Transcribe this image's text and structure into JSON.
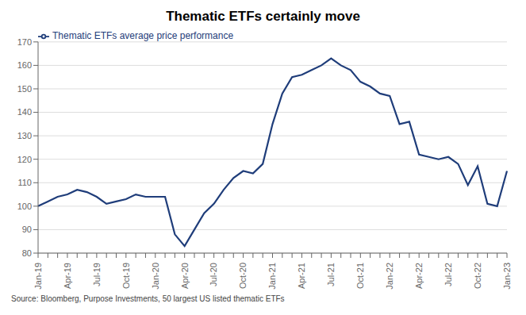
{
  "chart_data": {
    "type": "line",
    "title": "Thematic ETFs certainly move",
    "annotations": [
      "Source: Bloomberg, Purpose Investments, 50 largest US listed thematic ETFs"
    ],
    "categories": [
      "Jan-19",
      null,
      null,
      "Apr-19",
      null,
      null,
      "Jul-19",
      null,
      null,
      "Oct-19",
      null,
      null,
      "Jan-20",
      null,
      null,
      "Apr-20",
      null,
      null,
      "Jul-20",
      null,
      null,
      "Oct-20",
      null,
      null,
      "Jan-21",
      null,
      null,
      "Apr-21",
      null,
      null,
      "Jul-21",
      null,
      null,
      "Oct-21",
      null,
      null,
      "Jan-22",
      null,
      null,
      "Apr-22",
      null,
      null,
      "Jul-22",
      null,
      null,
      "Oct-22",
      null,
      null,
      "Jan-23"
    ],
    "series": [
      {
        "name": "Thematic ETFs average price performance",
        "color": "#1f3d7a",
        "values": [
          100,
          102,
          104,
          105,
          107,
          106,
          104,
          101,
          102,
          103,
          105,
          104,
          104,
          104,
          88,
          83,
          90,
          97,
          101,
          107,
          112,
          115,
          114,
          118,
          135,
          148,
          155,
          156,
          158,
          160,
          163,
          160,
          158,
          153,
          151,
          148,
          147,
          135,
          136,
          122,
          121,
          120,
          121,
          118,
          109,
          117,
          101,
          100,
          115
        ]
      }
    ],
    "ylim": [
      80,
      170
    ],
    "yticks": [
      80,
      90,
      100,
      110,
      120,
      130,
      140,
      150,
      160,
      170
    ],
    "grid": true,
    "legend": "upper left"
  }
}
